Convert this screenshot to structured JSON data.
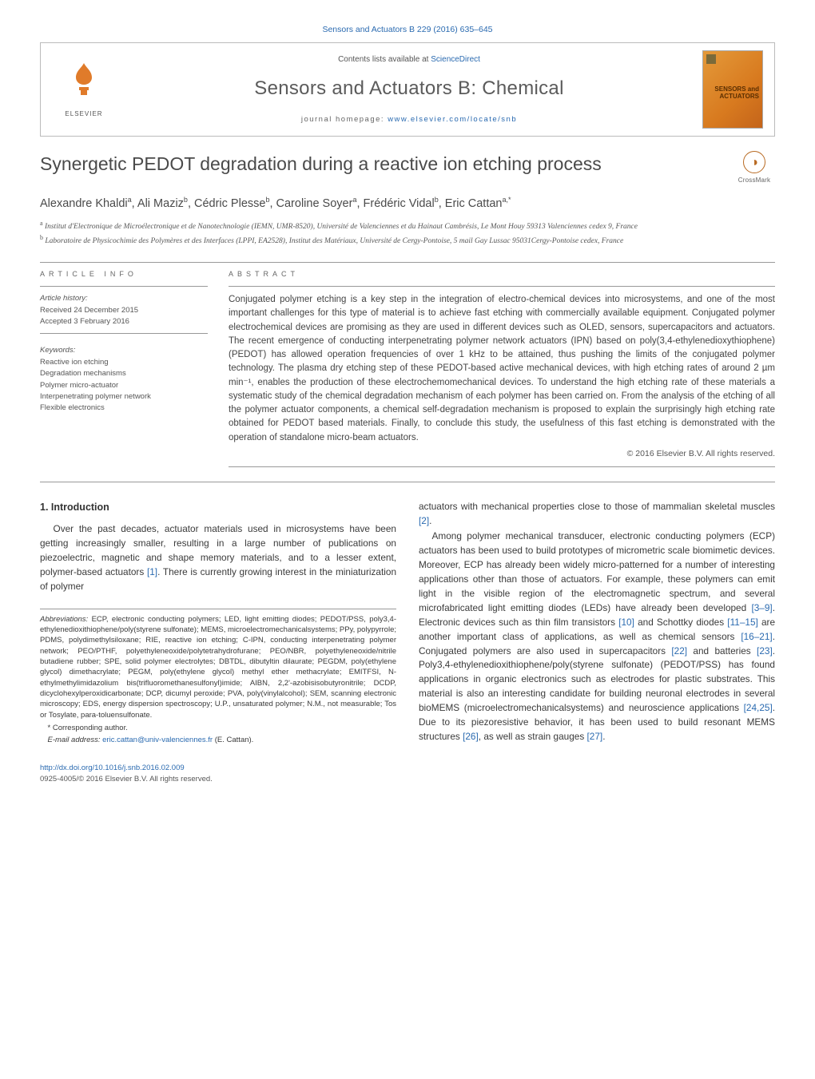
{
  "runningHead": "Sensors and Actuators B 229 (2016) 635–645",
  "banner": {
    "contentsPrefix": "Contents lists available at ",
    "contentsLink": "ScienceDirect",
    "journal": "Sensors and Actuators B: Chemical",
    "homepagePrefix": "journal homepage: ",
    "homepageUrl": "www.elsevier.com/locate/snb",
    "publisher": "ELSEVIER",
    "coverTextTop": "SENSORS and",
    "coverTextBot": "ACTUATORS"
  },
  "title": "Synergetic PEDOT degradation during a reactive ion etching process",
  "crossmark": "CrossMark",
  "authors": [
    {
      "name": "Alexandre Khaldi",
      "sup": "a"
    },
    {
      "name": "Ali Maziz",
      "sup": "b"
    },
    {
      "name": "Cédric Plesse",
      "sup": "b"
    },
    {
      "name": "Caroline Soyer",
      "sup": "a"
    },
    {
      "name": "Frédéric Vidal",
      "sup": "b"
    },
    {
      "name": "Eric Cattan",
      "sup": "a,*"
    }
  ],
  "affiliations": [
    {
      "key": "a",
      "text": "Institut d'Electronique de Microélectronique et de Nanotechnologie (IEMN, UMR-8520), Université de Valenciennes et du Hainaut Cambrésis, Le Mont Houy 59313 Valenciennes cedex 9, France"
    },
    {
      "key": "b",
      "text": "Laboratoire de Physicochimie des Polymères et des Interfaces (LPPI, EA2528), Institut des Matériaux, Université de Cergy-Pontoise, 5 mail Gay Lussac 95031Cergy-Pontoise cedex, France"
    }
  ],
  "articleInfo": {
    "heading": "ARTICLE INFO",
    "historyHead": "Article history:",
    "received": "Received 24 December 2015",
    "accepted": "Accepted 3 February 2016",
    "keywordsHead": "Keywords:",
    "keywords": [
      "Reactive ion etching",
      "Degradation mechanisms",
      "Polymer micro-actuator",
      "Interpenetrating polymer network",
      "Flexible electronics"
    ]
  },
  "abstractHead": "ABSTRACT",
  "abstract": "Conjugated polymer etching is a key step in the integration of electro-chemical devices into microsystems, and one of the most important challenges for this type of material is to achieve fast etching with commercially available equipment. Conjugated polymer electrochemical devices are promising as they are used in different devices such as OLED, sensors, supercapacitors and actuators. The recent emergence of conducting interpenetrating polymer network actuators (IPN) based on poly(3,4-ethylenedioxythiophene) (PEDOT) has allowed operation frequencies of over 1 kHz to be attained, thus pushing the limits of the conjugated polymer technology. The plasma dry etching step of these PEDOT-based active mechanical devices, with high etching rates of around 2 µm min⁻¹, enables the production of these electrochemomechanical devices. To understand the high etching rate of these materials a systematic study of the chemical degradation mechanism of each polymer has been carried on. From the analysis of the etching of all the polymer actuator components, a chemical self-degradation mechanism is proposed to explain the surprisingly high etching rate obtained for PEDOT based materials. Finally, to conclude this study, the usefulness of this fast etching is demonstrated with the operation of standalone micro-beam actuators.",
  "copyright": "© 2016 Elsevier B.V. All rights reserved.",
  "section1": {
    "heading": "1. Introduction",
    "p1": "Over the past decades, actuator materials used in microsystems have been getting increasingly smaller, resulting in a large number of publications on piezoelectric, magnetic and shape memory materials, and to a lesser extent, polymer-based actuators [1]. There is currently growing interest in the miniaturization of polymer",
    "p2": "actuators with mechanical properties close to those of mammalian skeletal muscles [2].",
    "p3": "Among polymer mechanical transducer, electronic conducting polymers (ECP) actuators has been used to build prototypes of micrometric scale biomimetic devices. Moreover, ECP has already been widely micro-patterned for a number of interesting applications other than those of actuators. For example, these polymers can emit light in the visible region of the electromagnetic spectrum, and several microfabricated light emitting diodes (LEDs) have already been developed [3–9]. Electronic devices such as thin film transistors [10] and Schottky diodes [11–15] are another important class of applications, as well as chemical sensors [16–21]. Conjugated polymers are also used in supercapacitors [22] and batteries [23]. Poly3,4-ethylenedioxithiophene/poly(styrene sulfonate) (PEDOT/PSS) has found applications in organic electronics such as electrodes for plastic substrates. This material is also an interesting candidate for building neuronal electrodes in several bioMEMS (microelectromechanicalsystems) and neuroscience applications [24,25]. Due to its piezoresistive behavior, it has been used to build resonant MEMS structures [26], as well as strain gauges [27]."
  },
  "footnotes": {
    "abbrevHead": "Abbreviations:",
    "abbrev": " ECP, electronic conducting polymers; LED, light emitting diodes; PEDOT/PSS, poly3,4-ethylenedioxithiophene/poly(styrene sulfonate); MEMS, microelectromechanicalsystems; PPy, polypyrrole; PDMS, polydimethylsiloxane; RIE, reactive ion etching; C-IPN, conducting interpenetrating polymer network; PEO/PTHF, polyethyleneoxide/polytetrahydrofurane; PEO/NBR, polyethyleneoxide/nitrile butadiene rubber; SPE, solid polymer electrolytes; DBTDL, dibutyltin dilaurate; PEGDM, poly(ethylene glycol) dimethacrylate; PEGM, poly(ethylene glycol) methyl ether methacrylate; EMITFSI, N-ethylmethylimidazolium bis(trifluoromethanesulfonyl)imide; AIBN, 2,2'-azobisisobutyronitrile; DCDP, dicyclohexylperoxidicarbonate; DCP, dicumyl peroxide; PVA, poly(vinylalcohol); SEM, scanning electronic microscopy; EDS, energy dispersion spectroscopy; U.P., unsaturated polymer; N.M., not measurable; Tos or Tosylate, para-toluensulfonate.",
    "corr": "* Corresponding author.",
    "emailLabel": "E-mail address: ",
    "email": "eric.cattan@univ-valenciennes.fr",
    "emailSuffix": " (E. Cattan)."
  },
  "footer": {
    "doi": "http://dx.doi.org/10.1016/j.snb.2016.02.009",
    "issn": "0925-4005/© 2016 Elsevier B.V. All rights reserved."
  },
  "colors": {
    "link": "#2a6ab0",
    "text": "#3a3a3a",
    "accent": "#e07b2a"
  }
}
